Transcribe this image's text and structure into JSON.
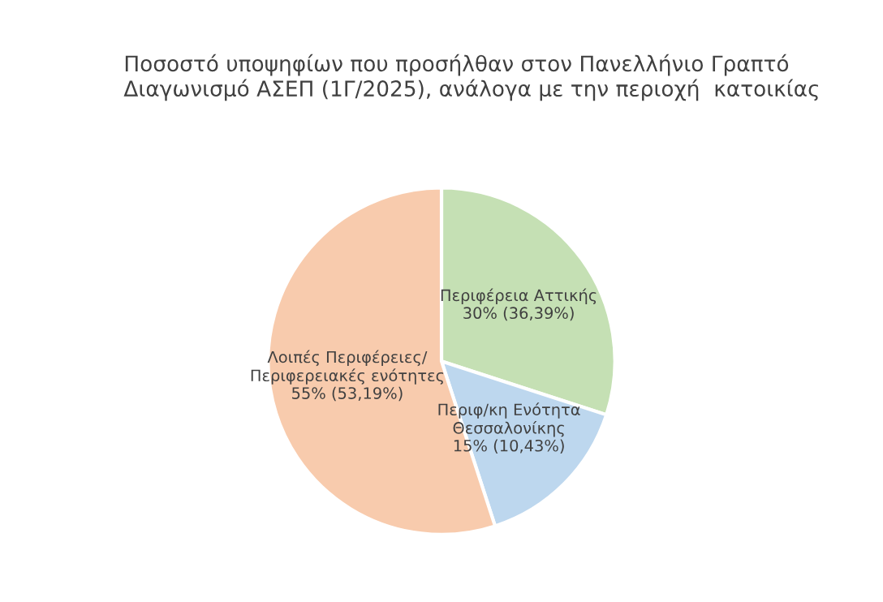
{
  "chart_data": {
    "type": "pie",
    "title": "Ποσοστό υποψηφίων που προσήλθαν στον Πανελλήνιο Γραπτό\nΔιαγωνισμό ΑΣΕΠ (1Γ/2025), ανάλογα με την περιοχή  κατοικίας",
    "categories": [
      "Περιφέρεια Αττικής",
      "Περιφ/κη Ενότητα\nΘεσσαλονίκης",
      "Λοιπές Περιφέρειες/\nΠεριφερειακές ενότητες"
    ],
    "values": [
      30,
      15,
      55
    ],
    "value_labels": [
      "30% (36,39%)",
      "15% (10,43%)",
      "55% (53,19%)"
    ],
    "colors": [
      "#c5e0b4",
      "#bdd7ee",
      "#f8cbad"
    ],
    "legend": false
  }
}
